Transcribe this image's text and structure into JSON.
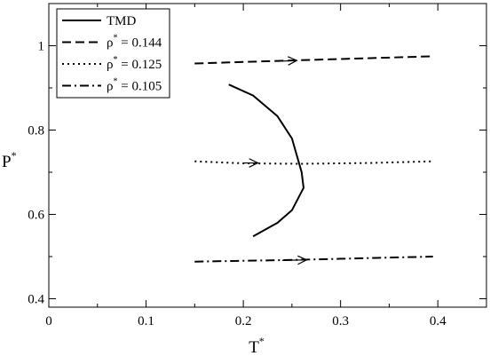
{
  "chart_data": {
    "type": "line",
    "xlabel": "T",
    "xlabel_sup": "*",
    "ylabel": "P",
    "ylabel_sup": "*",
    "xlim": [
      0,
      0.45
    ],
    "ylim": [
      0.38,
      1.1
    ],
    "x_ticks": [
      0,
      0.1,
      0.2,
      0.3,
      0.4
    ],
    "x_tick_labels": [
      "0",
      "0.1",
      "0.2",
      "0.3",
      "0.4"
    ],
    "y_ticks": [
      0.4,
      0.6,
      0.8,
      1.0
    ],
    "y_tick_labels": [
      "0.4",
      "0.6",
      "0.8",
      "1"
    ],
    "grid": false,
    "legend_position": "top-left",
    "series": [
      {
        "name": "TMD",
        "style": "solid",
        "points": [
          [
            0.185,
            0.908
          ],
          [
            0.21,
            0.882
          ],
          [
            0.235,
            0.833
          ],
          [
            0.25,
            0.78
          ],
          [
            0.26,
            0.7
          ],
          [
            0.262,
            0.663
          ],
          [
            0.25,
            0.61
          ],
          [
            0.235,
            0.58
          ],
          [
            0.21,
            0.548
          ]
        ]
      },
      {
        "name": "ρ",
        "name_sup": "*",
        "name_suffix": " = 0.144",
        "style": "dashed",
        "points": [
          [
            0.15,
            0.958
          ],
          [
            0.25,
            0.965
          ],
          [
            0.395,
            0.975
          ]
        ],
        "arrow": [
          [
            0.235,
            0.963
          ],
          [
            0.255,
            0.965
          ]
        ]
      },
      {
        "name": "ρ",
        "name_sup": "*",
        "name_suffix": " = 0.125",
        "style": "dotted",
        "points": [
          [
            0.15,
            0.726
          ],
          [
            0.2,
            0.721
          ],
          [
            0.26,
            0.72
          ],
          [
            0.33,
            0.722
          ],
          [
            0.395,
            0.726
          ]
        ],
        "arrow": [
          [
            0.2,
            0.722
          ],
          [
            0.215,
            0.722
          ]
        ]
      },
      {
        "name": "ρ",
        "name_sup": "*",
        "name_suffix": " = 0.105",
        "style": "dashdot",
        "points": [
          [
            0.15,
            0.488
          ],
          [
            0.25,
            0.492
          ],
          [
            0.395,
            0.5
          ]
        ],
        "arrow": [
          [
            0.24,
            0.491
          ],
          [
            0.265,
            0.492
          ]
        ]
      }
    ]
  }
}
